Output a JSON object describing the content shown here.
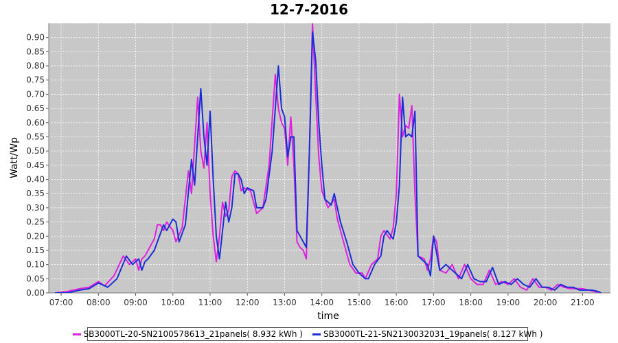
{
  "chart_data": {
    "type": "line",
    "title": "12-7-2016",
    "xlabel": "time",
    "ylabel": "Watt/Wp",
    "xlim": [
      "06:40",
      "21:45"
    ],
    "ylim": [
      0,
      0.95
    ],
    "x_ticks": [
      "07:00",
      "08:00",
      "09:00",
      "10:00",
      "11:00",
      "12:00",
      "13:00",
      "14:00",
      "15:00",
      "16:00",
      "17:00",
      "18:00",
      "19:00",
      "20:00",
      "21:00"
    ],
    "y_ticks": [
      "0.00",
      "0.05",
      "0.10",
      "0.15",
      "0.20",
      "0.25",
      "0.30",
      "0.35",
      "0.40",
      "0.45",
      "0.50",
      "0.55",
      "0.60",
      "0.65",
      "0.70",
      "0.75",
      "0.80",
      "0.85",
      "0.90"
    ],
    "grid": true,
    "legend_position": "bottom",
    "series": [
      {
        "name": "SB3000TL-20-SN2100578613_21panels( 8.932 kWh )",
        "color": "#e020e0",
        "points": [
          [
            "06:50",
            0.0
          ],
          [
            "07:10",
            0.005
          ],
          [
            "07:30",
            0.015
          ],
          [
            "07:45",
            0.02
          ],
          [
            "08:00",
            0.04
          ],
          [
            "08:10",
            0.025
          ],
          [
            "08:25",
            0.06
          ],
          [
            "08:40",
            0.13
          ],
          [
            "08:50",
            0.1
          ],
          [
            "09:00",
            0.12
          ],
          [
            "09:05",
            0.08
          ],
          [
            "09:10",
            0.12
          ],
          [
            "09:15",
            0.13
          ],
          [
            "09:25",
            0.17
          ],
          [
            "09:30",
            0.19
          ],
          [
            "09:35",
            0.24
          ],
          [
            "09:40",
            0.24
          ],
          [
            "09:45",
            0.22
          ],
          [
            "09:50",
            0.25
          ],
          [
            "10:00",
            0.22
          ],
          [
            "10:05",
            0.18
          ],
          [
            "10:15",
            0.23
          ],
          [
            "10:25",
            0.43
          ],
          [
            "10:30",
            0.35
          ],
          [
            "10:40",
            0.69
          ],
          [
            "10:45",
            0.5
          ],
          [
            "10:50",
            0.44
          ],
          [
            "10:55",
            0.6
          ],
          [
            "11:00",
            0.35
          ],
          [
            "11:05",
            0.2
          ],
          [
            "11:10",
            0.11
          ],
          [
            "11:15",
            0.2
          ],
          [
            "11:20",
            0.32
          ],
          [
            "11:25",
            0.27
          ],
          [
            "11:30",
            0.29
          ],
          [
            "11:35",
            0.41
          ],
          [
            "11:40",
            0.43
          ],
          [
            "11:45",
            0.42
          ],
          [
            "11:50",
            0.36
          ],
          [
            "11:55",
            0.37
          ],
          [
            "12:05",
            0.36
          ],
          [
            "12:15",
            0.28
          ],
          [
            "12:25",
            0.3
          ],
          [
            "12:35",
            0.45
          ],
          [
            "12:45",
            0.77
          ],
          [
            "12:50",
            0.65
          ],
          [
            "12:55",
            0.6
          ],
          [
            "13:00",
            0.58
          ],
          [
            "13:05",
            0.45
          ],
          [
            "13:10",
            0.62
          ],
          [
            "13:15",
            0.45
          ],
          [
            "13:20",
            0.18
          ],
          [
            "13:25",
            0.16
          ],
          [
            "13:30",
            0.15
          ],
          [
            "13:35",
            0.12
          ],
          [
            "13:40",
            0.5
          ],
          [
            "13:45",
            0.95
          ],
          [
            "13:50",
            0.7
          ],
          [
            "13:55",
            0.48
          ],
          [
            "14:00",
            0.36
          ],
          [
            "14:10",
            0.3
          ],
          [
            "14:20",
            0.33
          ],
          [
            "14:25",
            0.26
          ],
          [
            "14:35",
            0.18
          ],
          [
            "14:45",
            0.1
          ],
          [
            "14:55",
            0.07
          ],
          [
            "15:05",
            0.07
          ],
          [
            "15:10",
            0.05
          ],
          [
            "15:20",
            0.1
          ],
          [
            "15:30",
            0.12
          ],
          [
            "15:35",
            0.2
          ],
          [
            "15:40",
            0.22
          ],
          [
            "15:50",
            0.19
          ],
          [
            "15:55",
            0.23
          ],
          [
            "16:00",
            0.35
          ],
          [
            "16:05",
            0.7
          ],
          [
            "16:10",
            0.55
          ],
          [
            "16:15",
            0.59
          ],
          [
            "16:20",
            0.58
          ],
          [
            "16:25",
            0.66
          ],
          [
            "16:30",
            0.35
          ],
          [
            "16:35",
            0.13
          ],
          [
            "16:45",
            0.12
          ],
          [
            "16:50",
            0.08
          ],
          [
            "16:55",
            0.12
          ],
          [
            "17:00",
            0.2
          ],
          [
            "17:05",
            0.18
          ],
          [
            "17:10",
            0.08
          ],
          [
            "17:20",
            0.07
          ],
          [
            "17:30",
            0.1
          ],
          [
            "17:40",
            0.05
          ],
          [
            "17:50",
            0.1
          ],
          [
            "18:00",
            0.05
          ],
          [
            "18:10",
            0.03
          ],
          [
            "18:20",
            0.03
          ],
          [
            "18:30",
            0.08
          ],
          [
            "18:40",
            0.03
          ],
          [
            "18:50",
            0.04
          ],
          [
            "19:00",
            0.03
          ],
          [
            "19:10",
            0.05
          ],
          [
            "19:20",
            0.02
          ],
          [
            "19:30",
            0.01
          ],
          [
            "19:40",
            0.05
          ],
          [
            "19:50",
            0.02
          ],
          [
            "20:00",
            0.02
          ],
          [
            "20:10",
            0.01
          ],
          [
            "20:20",
            0.03
          ],
          [
            "20:30",
            0.02
          ],
          [
            "20:40",
            0.015
          ],
          [
            "20:50",
            0.015
          ],
          [
            "21:00",
            0.015
          ],
          [
            "21:10",
            0.01
          ],
          [
            "21:20",
            0.005
          ],
          [
            "21:25",
            0.0
          ]
        ]
      },
      {
        "name": "SB3000TL-21-SN2130032031_19panels( 8.127 kWh )",
        "color": "#1a2ed8",
        "points": [
          [
            "06:50",
            0.0
          ],
          [
            "07:10",
            0.0
          ],
          [
            "07:30",
            0.01
          ],
          [
            "07:45",
            0.015
          ],
          [
            "08:00",
            0.035
          ],
          [
            "08:15",
            0.02
          ],
          [
            "08:30",
            0.05
          ],
          [
            "08:45",
            0.13
          ],
          [
            "08:55",
            0.1
          ],
          [
            "09:05",
            0.12
          ],
          [
            "09:10",
            0.08
          ],
          [
            "09:15",
            0.11
          ],
          [
            "09:20",
            0.12
          ],
          [
            "09:30",
            0.15
          ],
          [
            "09:35",
            0.18
          ],
          [
            "09:40",
            0.21
          ],
          [
            "09:45",
            0.24
          ],
          [
            "09:50",
            0.22
          ],
          [
            "10:00",
            0.26
          ],
          [
            "10:05",
            0.25
          ],
          [
            "10:10",
            0.18
          ],
          [
            "10:20",
            0.24
          ],
          [
            "10:30",
            0.47
          ],
          [
            "10:35",
            0.38
          ],
          [
            "10:45",
            0.72
          ],
          [
            "10:50",
            0.55
          ],
          [
            "10:55",
            0.45
          ],
          [
            "11:00",
            0.64
          ],
          [
            "11:05",
            0.4
          ],
          [
            "11:10",
            0.2
          ],
          [
            "11:15",
            0.12
          ],
          [
            "11:20",
            0.22
          ],
          [
            "11:25",
            0.32
          ],
          [
            "11:30",
            0.25
          ],
          [
            "11:35",
            0.3
          ],
          [
            "11:40",
            0.42
          ],
          [
            "11:45",
            0.42
          ],
          [
            "11:50",
            0.4
          ],
          [
            "11:55",
            0.35
          ],
          [
            "12:00",
            0.37
          ],
          [
            "12:10",
            0.36
          ],
          [
            "12:15",
            0.3
          ],
          [
            "12:25",
            0.3
          ],
          [
            "12:30",
            0.33
          ],
          [
            "12:40",
            0.5
          ],
          [
            "12:50",
            0.8
          ],
          [
            "12:55",
            0.65
          ],
          [
            "13:00",
            0.62
          ],
          [
            "13:05",
            0.48
          ],
          [
            "13:10",
            0.55
          ],
          [
            "13:15",
            0.55
          ],
          [
            "13:20",
            0.22
          ],
          [
            "13:25",
            0.2
          ],
          [
            "13:30",
            0.18
          ],
          [
            "13:35",
            0.16
          ],
          [
            "13:40",
            0.5
          ],
          [
            "13:45",
            0.92
          ],
          [
            "13:50",
            0.82
          ],
          [
            "13:55",
            0.6
          ],
          [
            "14:00",
            0.45
          ],
          [
            "14:05",
            0.33
          ],
          [
            "14:15",
            0.31
          ],
          [
            "14:20",
            0.35
          ],
          [
            "14:30",
            0.25
          ],
          [
            "14:40",
            0.18
          ],
          [
            "14:50",
            0.1
          ],
          [
            "15:00",
            0.07
          ],
          [
            "15:10",
            0.05
          ],
          [
            "15:15",
            0.05
          ],
          [
            "15:25",
            0.1
          ],
          [
            "15:35",
            0.13
          ],
          [
            "15:40",
            0.2
          ],
          [
            "15:45",
            0.22
          ],
          [
            "15:55",
            0.19
          ],
          [
            "16:00",
            0.25
          ],
          [
            "16:05",
            0.38
          ],
          [
            "16:10",
            0.69
          ],
          [
            "16:15",
            0.55
          ],
          [
            "16:20",
            0.56
          ],
          [
            "16:25",
            0.55
          ],
          [
            "16:30",
            0.64
          ],
          [
            "16:35",
            0.13
          ],
          [
            "16:50",
            0.1
          ],
          [
            "16:55",
            0.06
          ],
          [
            "17:00",
            0.2
          ],
          [
            "17:10",
            0.08
          ],
          [
            "17:20",
            0.1
          ],
          [
            "17:30",
            0.08
          ],
          [
            "17:45",
            0.05
          ],
          [
            "17:55",
            0.1
          ],
          [
            "18:05",
            0.05
          ],
          [
            "18:15",
            0.04
          ],
          [
            "18:25",
            0.04
          ],
          [
            "18:35",
            0.09
          ],
          [
            "18:45",
            0.03
          ],
          [
            "18:55",
            0.04
          ],
          [
            "19:05",
            0.03
          ],
          [
            "19:15",
            0.05
          ],
          [
            "19:25",
            0.03
          ],
          [
            "19:35",
            0.02
          ],
          [
            "19:45",
            0.05
          ],
          [
            "19:55",
            0.02
          ],
          [
            "20:05",
            0.02
          ],
          [
            "20:15",
            0.01
          ],
          [
            "20:25",
            0.03
          ],
          [
            "20:35",
            0.02
          ],
          [
            "20:45",
            0.02
          ],
          [
            "20:55",
            0.01
          ],
          [
            "21:05",
            0.01
          ],
          [
            "21:15",
            0.01
          ],
          [
            "21:25",
            0.005
          ],
          [
            "21:30",
            0.0
          ]
        ]
      }
    ]
  }
}
